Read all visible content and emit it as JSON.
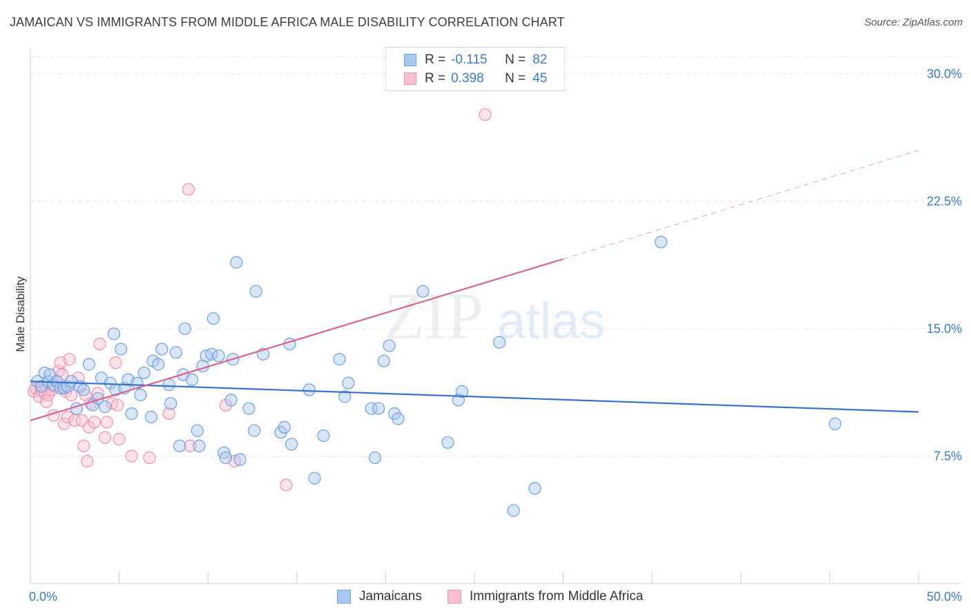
{
  "title": "JAMAICAN VS IMMIGRANTS FROM MIDDLE AFRICA MALE DISABILITY CORRELATION CHART",
  "source": "Source: ZipAtlas.com",
  "watermark": {
    "zip": "ZIP",
    "atlas": "atlas"
  },
  "colors": {
    "blue_fill": "#a8c8f0",
    "blue_stroke": "#6a9fe0",
    "blue_line": "#2f72cf",
    "pink_fill": "#f8c0d0",
    "pink_stroke": "#ee8fab",
    "pink_line": "#e0608a",
    "tick_text": "#3b78c9",
    "grid": "#e3e3e3"
  },
  "legend": {
    "rows": [
      {
        "r_label": "R =",
        "r_value": "-0.115",
        "n_label": "N =",
        "n_value": "82"
      },
      {
        "r_label": "R =",
        "r_value": "0.398",
        "n_label": "N =",
        "n_value": "45"
      }
    ]
  },
  "bottom_legend": {
    "series1": "Jamaicans",
    "series2": "Immigrants from Middle Africa"
  },
  "chart_data": {
    "type": "scatter",
    "xlabel": "",
    "ylabel": "Male Disability",
    "xlim": [
      0,
      50
    ],
    "ylim": [
      0,
      31.5
    ],
    "x_tick_labels": {
      "left": "0.0%",
      "right": "50.0%"
    },
    "y_ticks": [
      7.5,
      15.0,
      22.5,
      30.0
    ],
    "y_tick_labels": [
      "7.5%",
      "15.0%",
      "22.5%",
      "30.0%"
    ],
    "grid": true,
    "series": [
      {
        "name": "Jamaicans",
        "r": -0.115,
        "n": 82,
        "trend": {
          "x0": 0,
          "y0": 11.9,
          "x1": 50,
          "y1": 10.1
        },
        "points": [
          [
            0.4,
            11.9
          ],
          [
            0.6,
            11.6
          ],
          [
            0.8,
            12.4
          ],
          [
            1.0,
            11.9
          ],
          [
            1.1,
            12.3
          ],
          [
            1.3,
            11.7
          ],
          [
            1.5,
            11.9
          ],
          [
            1.7,
            11.5
          ],
          [
            1.9,
            11.5
          ],
          [
            2.1,
            11.6
          ],
          [
            2.3,
            11.9
          ],
          [
            2.6,
            10.3
          ],
          [
            2.8,
            11.6
          ],
          [
            3.0,
            11.4
          ],
          [
            3.3,
            12.9
          ],
          [
            3.5,
            10.5
          ],
          [
            3.8,
            10.9
          ],
          [
            4.0,
            12.1
          ],
          [
            4.2,
            10.4
          ],
          [
            4.5,
            11.8
          ],
          [
            4.7,
            14.7
          ],
          [
            4.8,
            11.4
          ],
          [
            5.1,
            13.8
          ],
          [
            5.3,
            11.5
          ],
          [
            5.5,
            12.0
          ],
          [
            5.7,
            10.0
          ],
          [
            6.0,
            11.8
          ],
          [
            6.2,
            11.1
          ],
          [
            6.4,
            12.4
          ],
          [
            6.8,
            9.8
          ],
          [
            6.9,
            13.1
          ],
          [
            7.2,
            12.9
          ],
          [
            7.4,
            13.8
          ],
          [
            7.8,
            11.7
          ],
          [
            7.9,
            10.6
          ],
          [
            8.2,
            13.6
          ],
          [
            8.4,
            8.1
          ],
          [
            8.6,
            12.3
          ],
          [
            8.7,
            15.0
          ],
          [
            9.1,
            12.0
          ],
          [
            9.4,
            9.0
          ],
          [
            9.5,
            8.1
          ],
          [
            9.7,
            12.8
          ],
          [
            9.9,
            13.4
          ],
          [
            10.2,
            13.5
          ],
          [
            10.3,
            15.6
          ],
          [
            10.6,
            13.4
          ],
          [
            10.9,
            7.7
          ],
          [
            11.0,
            7.4
          ],
          [
            11.3,
            10.8
          ],
          [
            11.4,
            13.2
          ],
          [
            11.6,
            18.9
          ],
          [
            11.8,
            7.3
          ],
          [
            12.3,
            10.3
          ],
          [
            12.6,
            9.0
          ],
          [
            12.7,
            17.2
          ],
          [
            13.1,
            13.5
          ],
          [
            14.1,
            8.9
          ],
          [
            14.3,
            9.2
          ],
          [
            14.6,
            14.1
          ],
          [
            14.7,
            8.2
          ],
          [
            15.7,
            11.4
          ],
          [
            16.0,
            6.2
          ],
          [
            16.5,
            8.7
          ],
          [
            17.4,
            13.2
          ],
          [
            17.7,
            11.0
          ],
          [
            17.9,
            11.8
          ],
          [
            19.2,
            10.3
          ],
          [
            19.4,
            7.4
          ],
          [
            19.6,
            10.3
          ],
          [
            19.9,
            13.1
          ],
          [
            20.2,
            14.0
          ],
          [
            20.5,
            10.0
          ],
          [
            20.7,
            9.7
          ],
          [
            22.1,
            17.2
          ],
          [
            23.5,
            8.3
          ],
          [
            24.1,
            10.8
          ],
          [
            24.3,
            11.3
          ],
          [
            26.4,
            14.2
          ],
          [
            27.2,
            4.3
          ],
          [
            28.4,
            5.6
          ],
          [
            35.5,
            20.1
          ],
          [
            45.3,
            9.4
          ]
        ]
      },
      {
        "name": "Immigrants from Middle Africa",
        "r": 0.398,
        "n": 45,
        "trend": {
          "x0": 0,
          "y0": 9.6,
          "x1": 30,
          "y1": 19.1
        },
        "trend_dashed": {
          "x0": 30,
          "y0": 19.1,
          "x1": 50,
          "y1": 25.5
        },
        "points": [
          [
            0.2,
            11.3
          ],
          [
            0.3,
            11.5
          ],
          [
            0.5,
            11.0
          ],
          [
            0.7,
            11.6
          ],
          [
            0.8,
            11.2
          ],
          [
            0.9,
            10.7
          ],
          [
            1.0,
            11.1
          ],
          [
            1.2,
            11.4
          ],
          [
            1.3,
            9.9
          ],
          [
            1.4,
            11.6
          ],
          [
            1.6,
            12.5
          ],
          [
            1.7,
            13.0
          ],
          [
            1.8,
            12.3
          ],
          [
            1.9,
            9.4
          ],
          [
            2.0,
            11.3
          ],
          [
            2.1,
            9.8
          ],
          [
            2.2,
            13.2
          ],
          [
            2.3,
            11.1
          ],
          [
            2.5,
            9.6
          ],
          [
            2.7,
            12.1
          ],
          [
            2.9,
            9.6
          ],
          [
            3.0,
            8.1
          ],
          [
            3.1,
            11.1
          ],
          [
            3.2,
            7.2
          ],
          [
            3.3,
            9.2
          ],
          [
            3.4,
            10.6
          ],
          [
            3.6,
            9.5
          ],
          [
            3.8,
            11.2
          ],
          [
            3.9,
            14.1
          ],
          [
            4.2,
            8.6
          ],
          [
            4.3,
            9.5
          ],
          [
            4.6,
            10.6
          ],
          [
            4.8,
            13.0
          ],
          [
            4.9,
            10.5
          ],
          [
            5.0,
            8.5
          ],
          [
            5.7,
            7.5
          ],
          [
            6.7,
            7.4
          ],
          [
            7.8,
            10.0
          ],
          [
            8.9,
            23.2
          ],
          [
            9.0,
            8.1
          ],
          [
            11.0,
            10.5
          ],
          [
            11.5,
            7.2
          ],
          [
            14.4,
            5.8
          ],
          [
            25.6,
            27.6
          ],
          [
            0.6,
            11.4
          ]
        ]
      }
    ]
  }
}
